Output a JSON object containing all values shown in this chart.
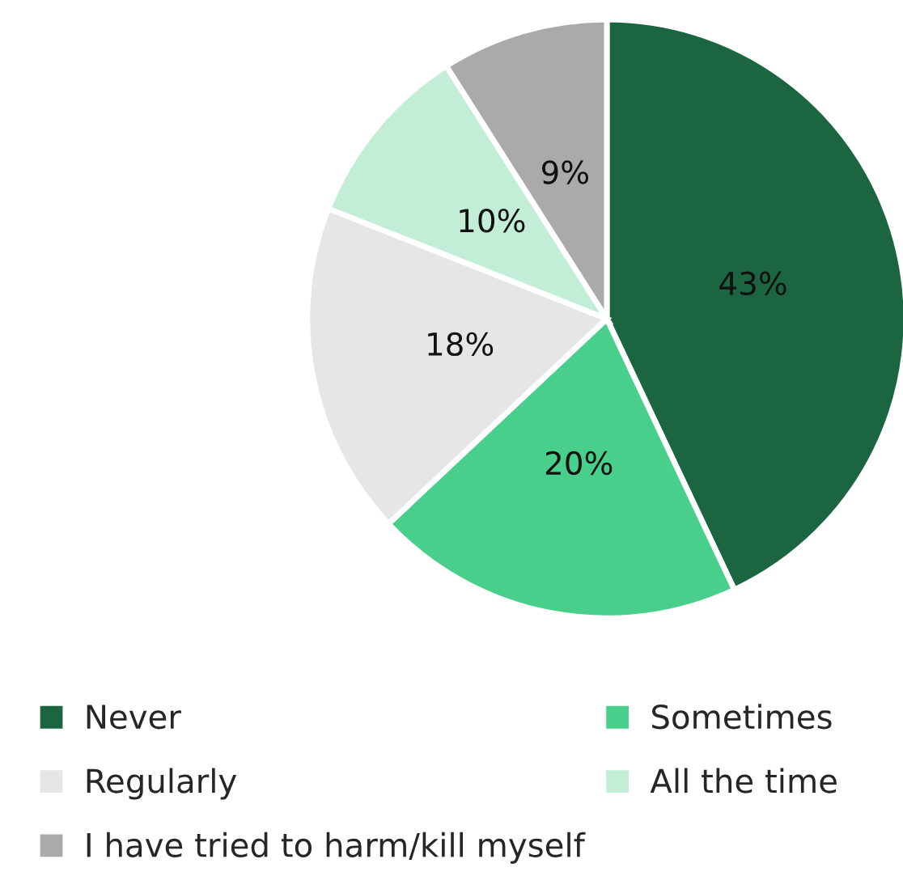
{
  "chart_data": {
    "type": "pie",
    "categories": [
      "Never",
      "Sometimes",
      "Regularly",
      "All the time",
      "I have tried to harm/kill myself"
    ],
    "values": [
      43,
      20,
      18,
      10,
      9
    ],
    "value_labels": [
      "43%",
      "20%",
      "18%",
      "10%",
      "9%"
    ],
    "colors": [
      "#1b6640",
      "#48cf8c",
      "#e6e6e6",
      "#c2eed8",
      "#aaaaaa"
    ],
    "legend": "bottom"
  }
}
